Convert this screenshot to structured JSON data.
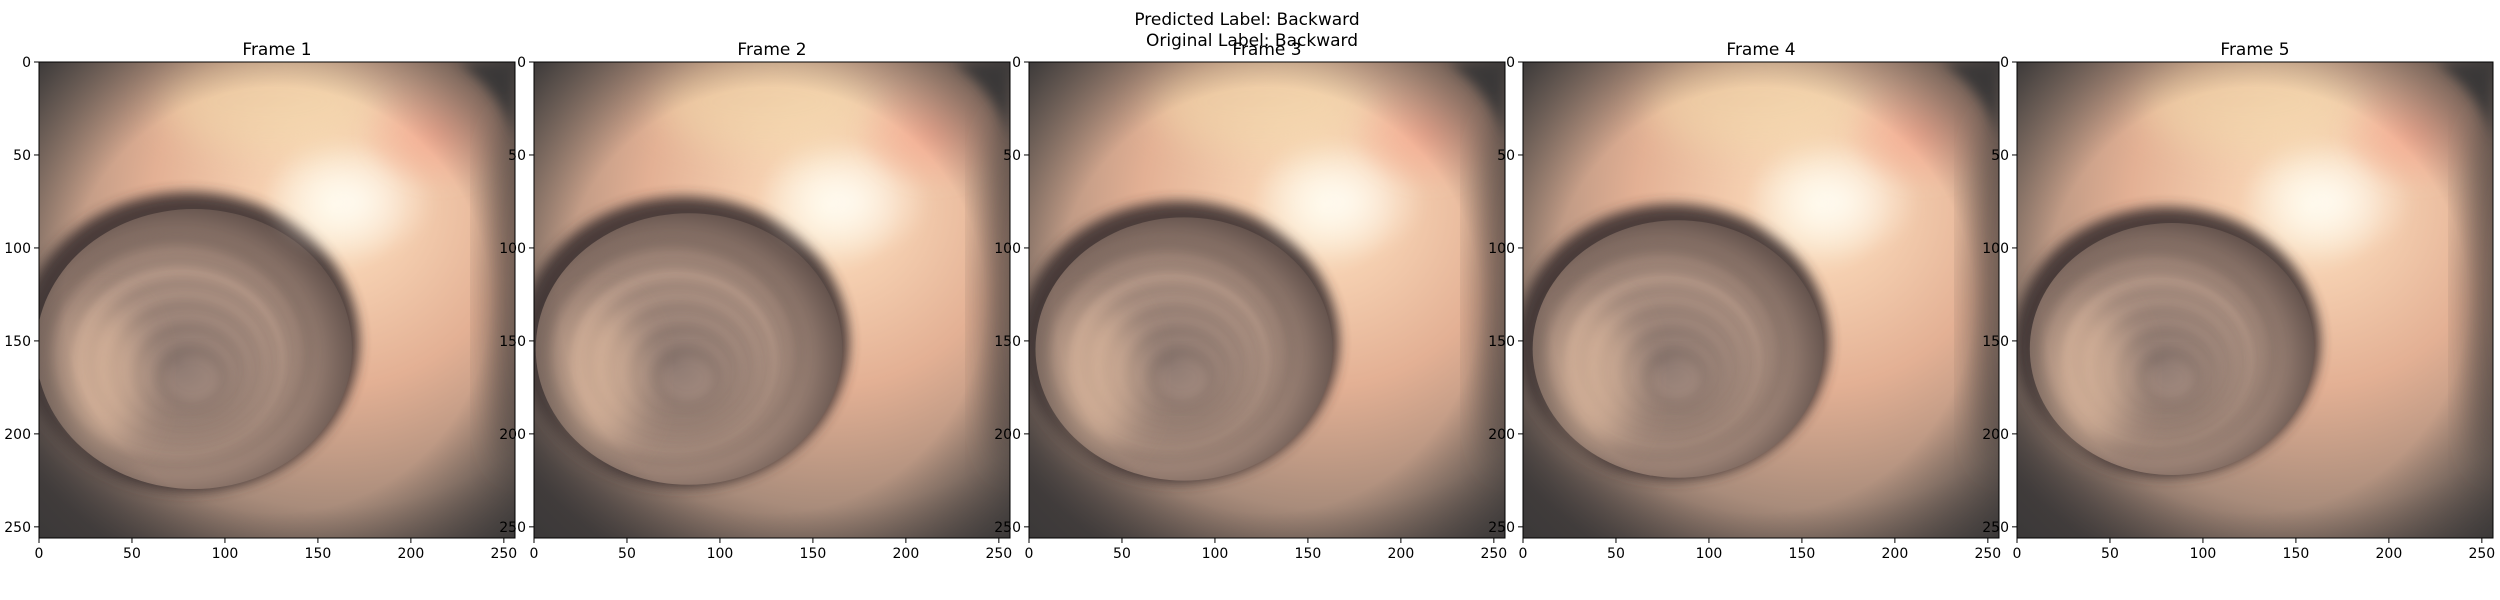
{
  "figure": {
    "suptitle_line1": "Predicted Label: Backward",
    "suptitle_line2": "Original Label: Backward"
  },
  "axes": {
    "x_ticks": [
      "0",
      "50",
      "100",
      "150",
      "200",
      "250"
    ],
    "y_ticks": [
      "0",
      "50",
      "100",
      "150",
      "200",
      "250"
    ]
  },
  "frames": [
    {
      "title": "Frame 1",
      "lumen_scale": 1.0
    },
    {
      "title": "Frame 2",
      "lumen_scale": 0.97
    },
    {
      "title": "Frame 3",
      "lumen_scale": 0.94
    },
    {
      "title": "Frame 4",
      "lumen_scale": 0.92
    },
    {
      "title": "Frame 5",
      "lumen_scale": 0.9
    }
  ],
  "colors": {
    "tissue_light": "#f3c2a2",
    "tissue_mid": "#c99780",
    "tissue_dark": "#5a4a45",
    "vignette": "#3a3838",
    "highlight": "#fff6de"
  }
}
